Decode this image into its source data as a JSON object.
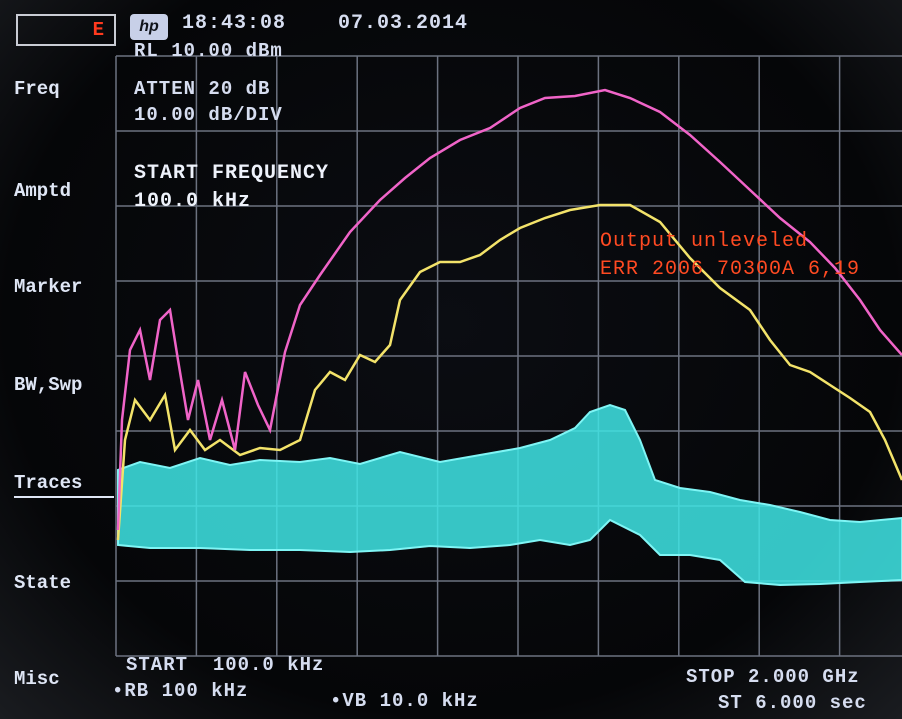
{
  "header": {
    "status": "E",
    "logo": "hp",
    "time": "18:43:08",
    "date": "07.03.2014"
  },
  "settings": {
    "reference_level": "RL 10.00 dBm",
    "attenuation": "ATTEN 20 dB",
    "scale": "10.00 dB/DIV"
  },
  "active_function": {
    "label": "START FREQUENCY",
    "value": "100.0 kHz"
  },
  "messages": [
    "Output unleveled",
    "ERR 2006 70300A 6,19"
  ],
  "menu": [
    "Freq",
    "Amptd",
    "Marker",
    "BW,Swp",
    "Traces",
    "State",
    "Misc"
  ],
  "footer": {
    "start": "START  100.0 kHz",
    "rbw": "•RB 100 kHz",
    "vbw": "•VB 10.0 kHz",
    "stop": "STOP 2.000 GHz",
    "sweep": "ST 6.000 sec"
  }
}
